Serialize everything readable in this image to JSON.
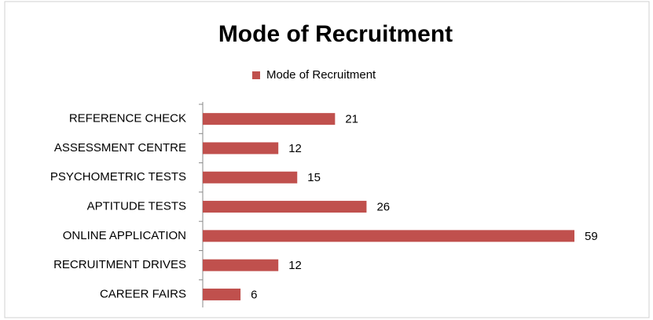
{
  "chart_data": {
    "type": "bar",
    "orientation": "horizontal",
    "title": "Mode of Recruitment",
    "categories": [
      "REFERENCE CHECK",
      "ASSESSMENT CENTRE",
      "PSYCHOMETRIC TESTS",
      "APTITUDE TESTS",
      "ONLINE APPLICATION",
      "RECRUITMENT DRIVES",
      "CAREER FAIRS"
    ],
    "series": [
      {
        "name": "Mode of Recruitment",
        "color": "#c0504d",
        "values": [
          21,
          12,
          15,
          26,
          59,
          12,
          6
        ]
      }
    ],
    "legend": "top"
  }
}
